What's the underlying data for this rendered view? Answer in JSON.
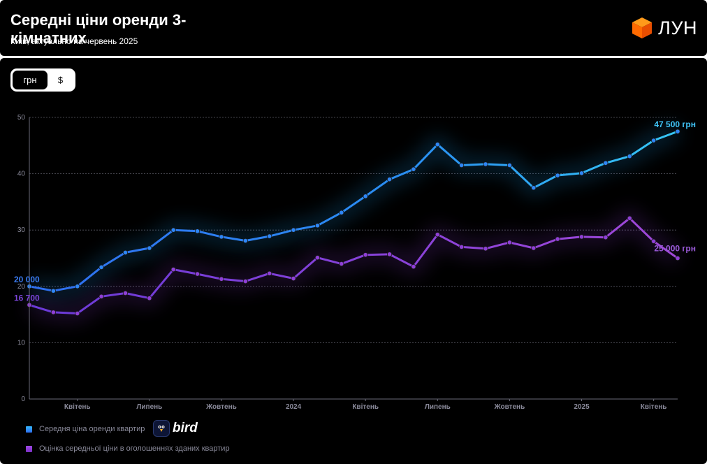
{
  "header": {
    "title": "Середні ціни оренди 3-кімнатних",
    "subtitle": "Київ, актуально на червень 2025",
    "brand": "ЛУН"
  },
  "currency_toggle": {
    "options": [
      "грн",
      "$"
    ],
    "selected": "грн"
  },
  "colors": {
    "series1": "#2e86f5",
    "series1_glow": "#1fa8ff",
    "series2": "#8f3fd6",
    "background": "#000000"
  },
  "legend": [
    {
      "label": "Середня ціна оренди квартир",
      "color": "#2e86f5"
    },
    {
      "label": "Оцінка середньої ціни в оголошеннях зданих квартир",
      "color": "#8f3fd6"
    }
  ],
  "attribution": "bird",
  "chart_data": {
    "type": "line",
    "ylim": [
      0,
      50
    ],
    "yticks": [
      "0",
      "10",
      "20",
      "30",
      "40",
      "50"
    ],
    "xtick_labels": [
      {
        "index": 2,
        "label": "Квітень"
      },
      {
        "index": 5,
        "label": "Липень"
      },
      {
        "index": 8,
        "label": "Жовтень"
      },
      {
        "index": 11,
        "label": "2024"
      },
      {
        "index": 14,
        "label": "Квітень"
      },
      {
        "index": 17,
        "label": "Липень"
      },
      {
        "index": 20,
        "label": "Жовтень"
      },
      {
        "index": 23,
        "label": "2025"
      },
      {
        "index": 26,
        "label": "Квітень"
      }
    ],
    "grid": true,
    "series": [
      {
        "name": "Середня ціна оренди квартир",
        "values": [
          20,
          19.2,
          20,
          23.4,
          26,
          26.8,
          30,
          29.8,
          28.8,
          28.1,
          28.9,
          30,
          30.8,
          33.1,
          36,
          39,
          40.8,
          45.2,
          41.5,
          41.7,
          41.5,
          37.5,
          39.7,
          40.1,
          41.9,
          43.1,
          45.9,
          47.5
        ],
        "start_label": "20 000",
        "end_label": "47 500 грн"
      },
      {
        "name": "Оцінка середньої ціни в оголошеннях зданих квартир",
        "values": [
          16.7,
          15.4,
          15.2,
          18.2,
          18.8,
          17.9,
          23,
          22.2,
          21.3,
          20.9,
          22.3,
          21.4,
          25.1,
          24,
          25.6,
          25.7,
          23.5,
          29.2,
          27,
          26.7,
          27.8,
          26.8,
          28.4,
          28.8,
          28.7,
          32.1,
          28,
          25
        ],
        "start_label": "16 700",
        "end_label": "25 000 грн"
      }
    ]
  }
}
